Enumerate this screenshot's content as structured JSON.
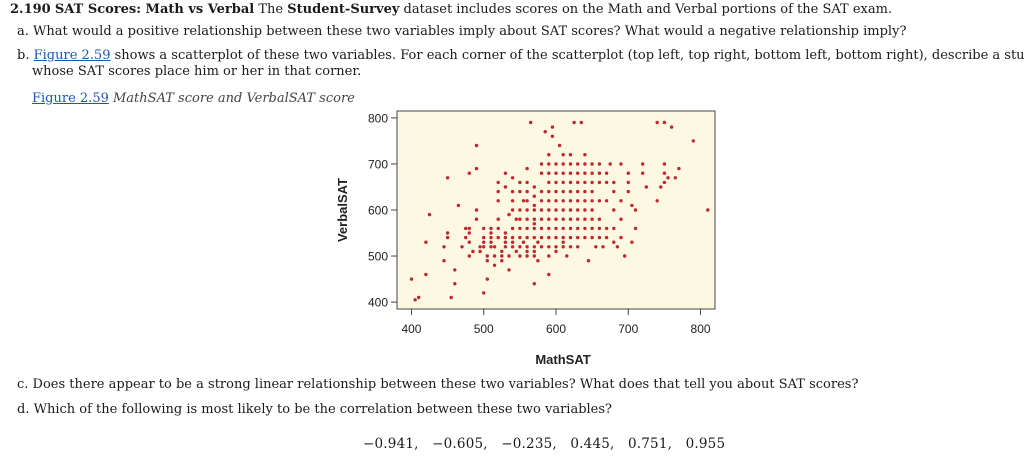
{
  "problem": {
    "number": "2.190",
    "title": "SAT Scores: Math vs Verbal",
    "intro_pre": "The",
    "dataset": "Student-Survey",
    "intro_post": "dataset includes scores on the Math and Verbal portions of the SAT exam.",
    "part_a": "a. What would a positive relationship between these two variables imply about SAT scores? What would a negative relationship imply?",
    "part_b_prefix": "b.",
    "figure_link": "Figure 2.59",
    "part_b_rest": "shows a scatterplot of these two variables. For each corner of the scatterplot (top left, top right, bottom left, bottom right), describe a student",
    "part_b_line2": "whose SAT scores place him or her in that corner.",
    "caption_link": "Figure 2.59",
    "caption_text": "MathSAT score and VerbalSAT score",
    "part_c": "c. Does there appear to be a strong linear relationship between these two variables? What does that tell you about SAT scores?",
    "part_d": "d. Which of the following is most likely to be the correlation between these two variables?",
    "options": "−0.941,   −0.605,   −0.235,   0.445,   0.751,   0.955"
  },
  "colors": {
    "point": "#c1272d",
    "plot_bg": "#fdf8e1",
    "axis": "#444444"
  },
  "chart_data": {
    "type": "scatter",
    "xlabel": "MathSAT",
    "ylabel": "VerbalSAT",
    "xlim": [
      380,
      820
    ],
    "ylim": [
      385,
      815
    ],
    "xticks": [
      400,
      500,
      600,
      700,
      800
    ],
    "yticks": [
      400,
      500,
      600,
      700,
      800
    ],
    "grid": false,
    "points": [
      [
        400,
        450
      ],
      [
        405,
        405
      ],
      [
        410,
        410
      ],
      [
        420,
        460
      ],
      [
        420,
        530
      ],
      [
        425,
        590
      ],
      [
        445,
        490
      ],
      [
        445,
        520
      ],
      [
        450,
        540
      ],
      [
        450,
        550
      ],
      [
        450,
        670
      ],
      [
        455,
        410
      ],
      [
        460,
        440
      ],
      [
        460,
        470
      ],
      [
        465,
        610
      ],
      [
        470,
        520
      ],
      [
        475,
        540
      ],
      [
        475,
        560
      ],
      [
        480,
        500
      ],
      [
        480,
        530
      ],
      [
        480,
        550
      ],
      [
        480,
        560
      ],
      [
        480,
        680
      ],
      [
        485,
        510
      ],
      [
        490,
        580
      ],
      [
        490,
        600
      ],
      [
        490,
        690
      ],
      [
        490,
        740
      ],
      [
        495,
        510
      ],
      [
        495,
        520
      ],
      [
        500,
        420
      ],
      [
        500,
        520
      ],
      [
        500,
        530
      ],
      [
        500,
        540
      ],
      [
        500,
        560
      ],
      [
        505,
        450
      ],
      [
        505,
        490
      ],
      [
        505,
        500
      ],
      [
        510,
        520
      ],
      [
        510,
        530
      ],
      [
        510,
        540
      ],
      [
        510,
        550
      ],
      [
        510,
        560
      ],
      [
        515,
        480
      ],
      [
        515,
        500
      ],
      [
        515,
        520
      ],
      [
        520,
        540
      ],
      [
        520,
        560
      ],
      [
        520,
        580
      ],
      [
        520,
        620
      ],
      [
        520,
        640
      ],
      [
        520,
        660
      ],
      [
        525,
        490
      ],
      [
        525,
        500
      ],
      [
        525,
        510
      ],
      [
        530,
        520
      ],
      [
        530,
        530
      ],
      [
        530,
        540
      ],
      [
        530,
        550
      ],
      [
        530,
        650
      ],
      [
        530,
        680
      ],
      [
        535,
        470
      ],
      [
        535,
        500
      ],
      [
        535,
        590
      ],
      [
        540,
        520
      ],
      [
        540,
        530
      ],
      [
        540,
        540
      ],
      [
        540,
        560
      ],
      [
        540,
        600
      ],
      [
        540,
        620
      ],
      [
        540,
        640
      ],
      [
        540,
        670
      ],
      [
        545,
        510
      ],
      [
        545,
        580
      ],
      [
        550,
        500
      ],
      [
        550,
        520
      ],
      [
        550,
        540
      ],
      [
        550,
        560
      ],
      [
        550,
        580
      ],
      [
        550,
        600
      ],
      [
        550,
        640
      ],
      [
        550,
        660
      ],
      [
        555,
        530
      ],
      [
        555,
        620
      ],
      [
        560,
        500
      ],
      [
        560,
        510
      ],
      [
        560,
        520
      ],
      [
        560,
        540
      ],
      [
        560,
        560
      ],
      [
        560,
        580
      ],
      [
        560,
        600
      ],
      [
        560,
        620
      ],
      [
        560,
        640
      ],
      [
        560,
        660
      ],
      [
        560,
        690
      ],
      [
        565,
        790
      ],
      [
        570,
        440
      ],
      [
        570,
        500
      ],
      [
        570,
        510
      ],
      [
        570,
        520
      ],
      [
        570,
        540
      ],
      [
        570,
        560
      ],
      [
        570,
        570
      ],
      [
        570,
        580
      ],
      [
        570,
        600
      ],
      [
        570,
        610
      ],
      [
        570,
        630
      ],
      [
        570,
        650
      ],
      [
        575,
        490
      ],
      [
        575,
        530
      ],
      [
        580,
        520
      ],
      [
        580,
        540
      ],
      [
        580,
        560
      ],
      [
        580,
        580
      ],
      [
        580,
        600
      ],
      [
        580,
        620
      ],
      [
        580,
        640
      ],
      [
        580,
        680
      ],
      [
        580,
        700
      ],
      [
        585,
        770
      ],
      [
        590,
        460
      ],
      [
        590,
        500
      ],
      [
        590,
        520
      ],
      [
        590,
        540
      ],
      [
        590,
        560
      ],
      [
        590,
        580
      ],
      [
        590,
        600
      ],
      [
        590,
        620
      ],
      [
        590,
        640
      ],
      [
        590,
        660
      ],
      [
        590,
        680
      ],
      [
        590,
        700
      ],
      [
        590,
        720
      ],
      [
        595,
        760
      ],
      [
        595,
        780
      ],
      [
        600,
        510
      ],
      [
        600,
        520
      ],
      [
        600,
        540
      ],
      [
        600,
        560
      ],
      [
        600,
        580
      ],
      [
        600,
        600
      ],
      [
        600,
        620
      ],
      [
        600,
        640
      ],
      [
        600,
        660
      ],
      [
        600,
        680
      ],
      [
        600,
        700
      ],
      [
        605,
        740
      ],
      [
        610,
        520
      ],
      [
        610,
        530
      ],
      [
        610,
        540
      ],
      [
        610,
        560
      ],
      [
        610,
        580
      ],
      [
        610,
        600
      ],
      [
        610,
        620
      ],
      [
        610,
        640
      ],
      [
        610,
        660
      ],
      [
        610,
        680
      ],
      [
        610,
        700
      ],
      [
        610,
        720
      ],
      [
        615,
        500
      ],
      [
        620,
        520
      ],
      [
        620,
        540
      ],
      [
        620,
        560
      ],
      [
        620,
        580
      ],
      [
        620,
        600
      ],
      [
        620,
        620
      ],
      [
        620,
        640
      ],
      [
        620,
        660
      ],
      [
        620,
        680
      ],
      [
        620,
        700
      ],
      [
        620,
        720
      ],
      [
        625,
        790
      ],
      [
        630,
        520
      ],
      [
        630,
        540
      ],
      [
        630,
        560
      ],
      [
        630,
        580
      ],
      [
        630,
        600
      ],
      [
        630,
        620
      ],
      [
        630,
        640
      ],
      [
        630,
        660
      ],
      [
        630,
        680
      ],
      [
        630,
        700
      ],
      [
        635,
        790
      ],
      [
        640,
        540
      ],
      [
        640,
        560
      ],
      [
        640,
        580
      ],
      [
        640,
        600
      ],
      [
        640,
        620
      ],
      [
        640,
        640
      ],
      [
        640,
        660
      ],
      [
        640,
        680
      ],
      [
        640,
        700
      ],
      [
        640,
        720
      ],
      [
        645,
        490
      ],
      [
        650,
        540
      ],
      [
        650,
        560
      ],
      [
        650,
        580
      ],
      [
        650,
        600
      ],
      [
        650,
        620
      ],
      [
        650,
        640
      ],
      [
        650,
        660
      ],
      [
        650,
        680
      ],
      [
        650,
        700
      ],
      [
        655,
        520
      ],
      [
        660,
        540
      ],
      [
        660,
        560
      ],
      [
        660,
        580
      ],
      [
        660,
        620
      ],
      [
        660,
        660
      ],
      [
        660,
        680
      ],
      [
        660,
        700
      ],
      [
        665,
        520
      ],
      [
        670,
        540
      ],
      [
        670,
        560
      ],
      [
        670,
        620
      ],
      [
        670,
        660
      ],
      [
        670,
        680
      ],
      [
        675,
        700
      ],
      [
        680,
        530
      ],
      [
        680,
        560
      ],
      [
        680,
        600
      ],
      [
        680,
        640
      ],
      [
        680,
        660
      ],
      [
        685,
        520
      ],
      [
        690,
        540
      ],
      [
        690,
        580
      ],
      [
        690,
        620
      ],
      [
        690,
        700
      ],
      [
        695,
        500
      ],
      [
        700,
        640
      ],
      [
        700,
        660
      ],
      [
        700,
        680
      ],
      [
        705,
        610
      ],
      [
        705,
        530
      ],
      [
        710,
        560
      ],
      [
        710,
        600
      ],
      [
        720,
        680
      ],
      [
        720,
        700
      ],
      [
        725,
        650
      ],
      [
        740,
        790
      ],
      [
        740,
        620
      ],
      [
        745,
        650
      ],
      [
        750,
        660
      ],
      [
        750,
        680
      ],
      [
        750,
        700
      ],
      [
        750,
        790
      ],
      [
        755,
        670
      ],
      [
        760,
        780
      ],
      [
        765,
        670
      ],
      [
        770,
        690
      ],
      [
        790,
        750
      ],
      [
        810,
        600
      ]
    ]
  }
}
